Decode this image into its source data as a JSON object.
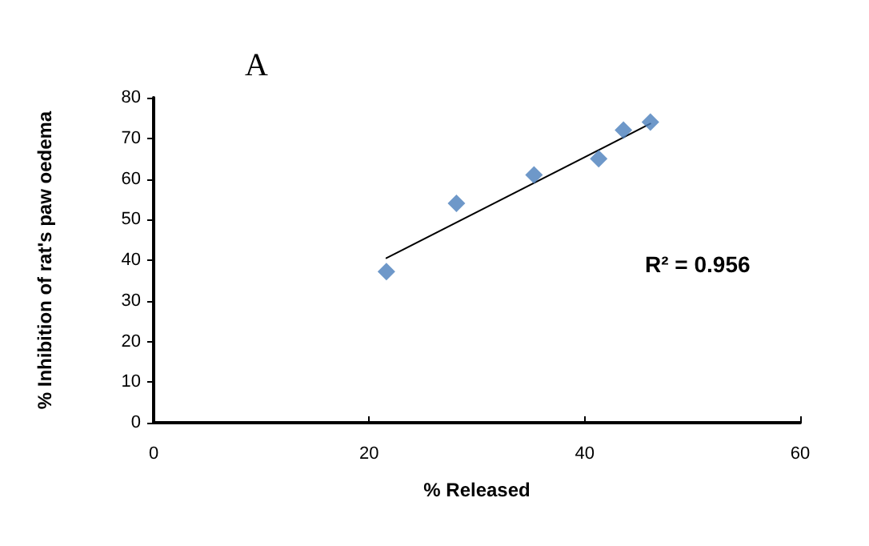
{
  "chart_data": {
    "type": "scatter",
    "title": "A",
    "xlabel": "% Released",
    "ylabel": "% Inhibition of rat's paw oedema",
    "annotations": [
      "R² = 0.956"
    ],
    "xlim": [
      0,
      60
    ],
    "xticks": [
      0,
      20,
      40,
      60
    ],
    "ylim": [
      0,
      80
    ],
    "yticks": [
      0,
      10,
      20,
      30,
      40,
      50,
      60,
      70,
      80
    ],
    "grid": false,
    "series": [
      {
        "color": "#4a7ebb",
        "marker": "diamond",
        "x": [
          21.6,
          28.1,
          35.3,
          41.3,
          43.6,
          46.1
        ],
        "values": [
          37.2,
          54,
          61,
          65,
          72,
          74
        ]
      },
      {
        "type": "line",
        "color": "#000000",
        "marker": "none",
        "line_style": "solid",
        "x": [
          21.6,
          46.1
        ],
        "values": [
          40.5,
          73.6
        ]
      }
    ]
  }
}
